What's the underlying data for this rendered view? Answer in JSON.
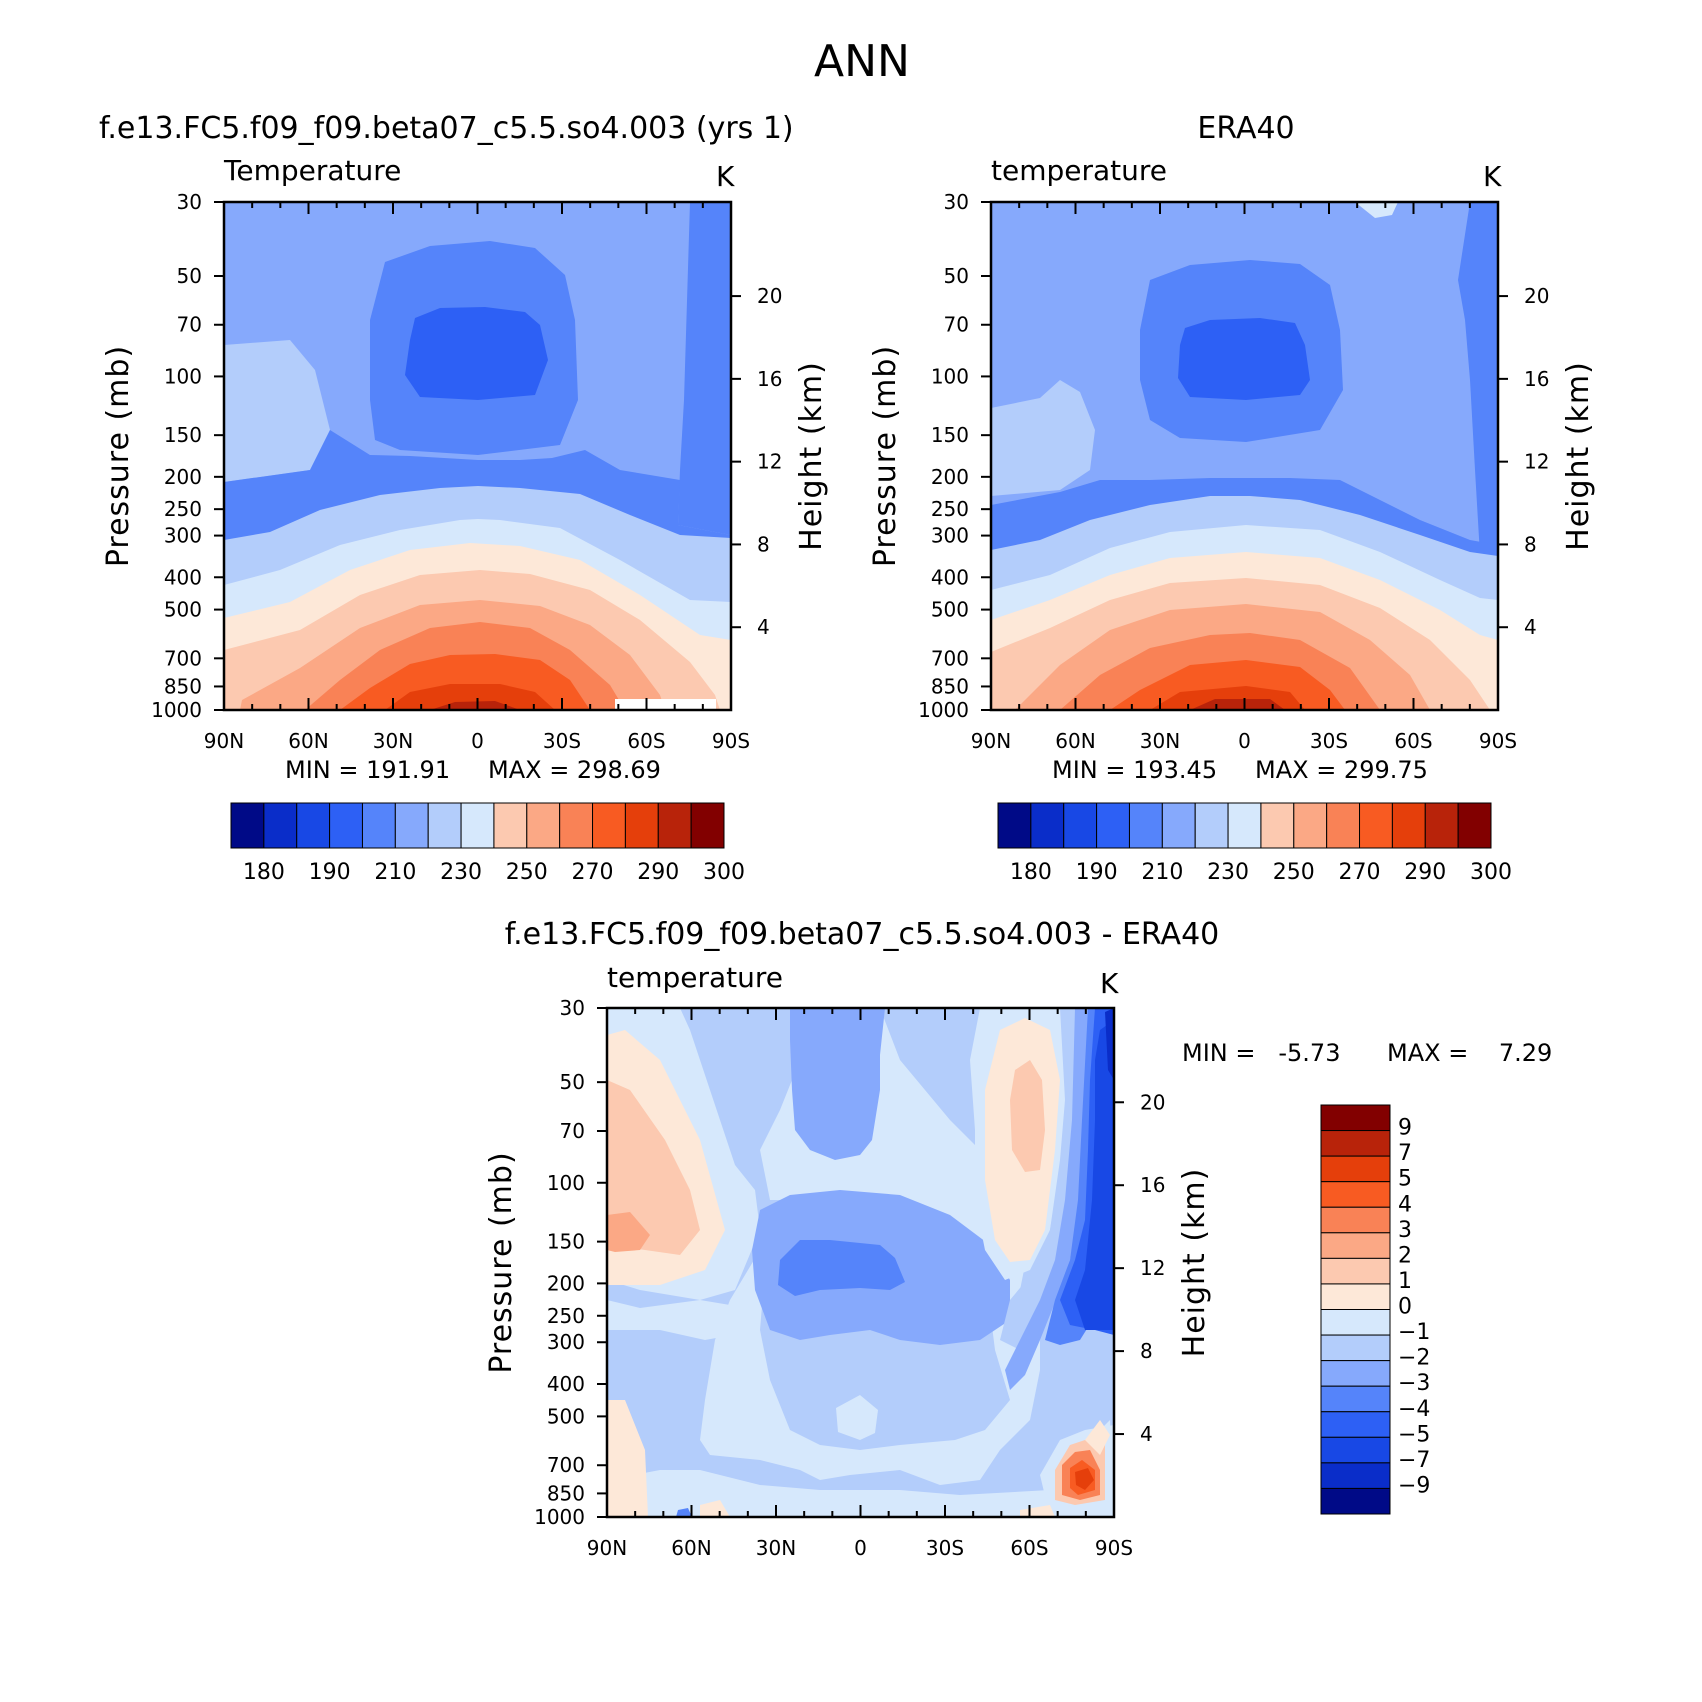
{
  "figure": {
    "title": "ANN",
    "colors": {
      "warm": [
        "#FDE8D8",
        "#FCC9B0",
        "#FBA885",
        "#F98256",
        "#F85B22",
        "#E53F0B",
        "#B8230A",
        "#820000"
      ],
      "cool": [
        "#D6E8FC",
        "#B3CDFB",
        "#86A9FC",
        "#5584FA",
        "#2D60F5",
        "#1848E5",
        "#0A2DC9",
        "#000A87"
      ]
    }
  },
  "chart_data": [
    {
      "type": "heatmap",
      "title": "f.e13.FC5.f09_f09.beta07_c5.5.so4.003 (yrs 1)",
      "variable": "Temperature",
      "units": "K",
      "ylabel": "Pressure (mb)",
      "ylabel_right": "Height (km)",
      "x_ticks": [
        "90N",
        "60N",
        "30N",
        "0",
        "30S",
        "60S",
        "90S"
      ],
      "y_ticks": [
        30,
        50,
        70,
        100,
        150,
        200,
        250,
        300,
        400,
        500,
        700,
        850,
        1000
      ],
      "height_ticks": [
        4,
        8,
        12,
        16,
        20
      ],
      "ylim": [
        1000,
        30
      ],
      "min_label": "MIN = 191.91",
      "max_label": "MAX = 298.69",
      "min": 191.91,
      "max": 298.69,
      "colorbar_labels": [
        "180",
        "190",
        "210",
        "230",
        "250",
        "270",
        "290",
        "300"
      ],
      "colorbar_levels": [
        180,
        185,
        190,
        200,
        210,
        220,
        230,
        240,
        250,
        260,
        270,
        280,
        290,
        295,
        300
      ]
    },
    {
      "type": "heatmap",
      "title": "ERA40",
      "variable": "temperature",
      "units": "K",
      "ylabel": "Pressure (mb)",
      "ylabel_right": "Height (km)",
      "x_ticks": [
        "90N",
        "60N",
        "30N",
        "0",
        "30S",
        "60S",
        "90S"
      ],
      "y_ticks": [
        30,
        50,
        70,
        100,
        150,
        200,
        250,
        300,
        400,
        500,
        700,
        850,
        1000
      ],
      "height_ticks": [
        4,
        8,
        12,
        16,
        20
      ],
      "ylim": [
        1000,
        30
      ],
      "min_label": "MIN = 193.45",
      "max_label": "MAX = 299.75",
      "min": 193.45,
      "max": 299.75,
      "colorbar_labels": [
        "180",
        "190",
        "210",
        "230",
        "250",
        "270",
        "290",
        "300"
      ],
      "colorbar_levels": [
        180,
        185,
        190,
        200,
        210,
        220,
        230,
        240,
        250,
        260,
        270,
        280,
        290,
        295,
        300
      ]
    },
    {
      "type": "heatmap",
      "title": "f.e13.FC5.f09_f09.beta07_c5.5.so4.003 - ERA40",
      "variable": "temperature",
      "units": "K",
      "ylabel": "Pressure (mb)",
      "ylabel_right": "Height (km)",
      "x_ticks": [
        "90N",
        "60N",
        "30N",
        "0",
        "30S",
        "60S",
        "90S"
      ],
      "y_ticks": [
        30,
        50,
        70,
        100,
        150,
        200,
        250,
        300,
        400,
        500,
        700,
        850,
        1000
      ],
      "height_ticks": [
        4,
        8,
        12,
        16,
        20
      ],
      "ylim": [
        1000,
        30
      ],
      "min_label": "MIN =   -5.73",
      "max_label": "MAX =    7.29",
      "min": -5.73,
      "max": 7.29,
      "colorbar_labels": [
        "9",
        "7",
        "5",
        "4",
        "3",
        "2",
        "1",
        "0",
        "-1",
        "-2",
        "-3",
        "-4",
        "-5",
        "-7",
        "-9"
      ],
      "colorbar_levels": [
        9,
        7,
        5,
        4,
        3,
        2,
        1,
        0,
        -1,
        -2,
        -3,
        -4,
        -5,
        -7,
        -9
      ]
    }
  ]
}
